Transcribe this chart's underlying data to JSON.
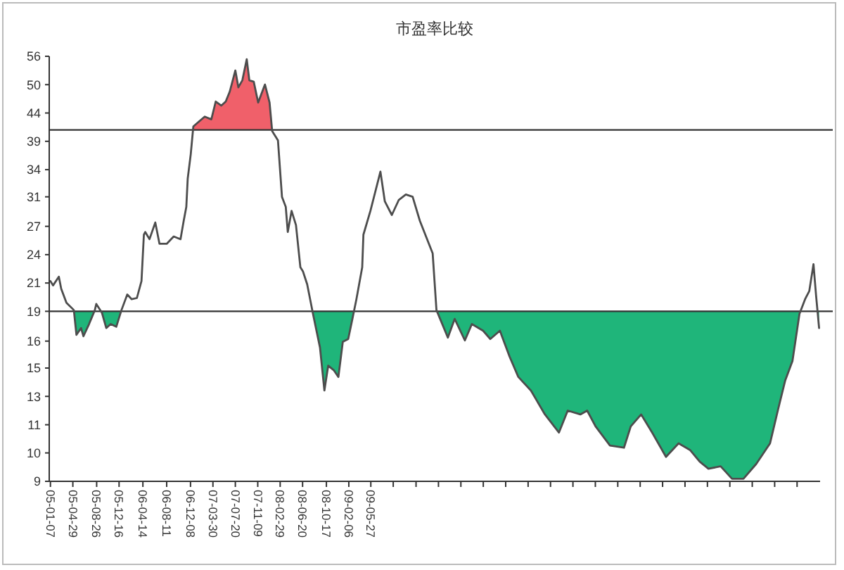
{
  "chart_data": {
    "type": "line",
    "title": "市盈率比较",
    "x": [
      "2005-01-07",
      "2005-01-20",
      "2005-02-18",
      "2005-03-02",
      "2005-03-28",
      "2005-05-04",
      "2005-05-17",
      "2005-06-09",
      "2005-06-21",
      "2005-07-19",
      "2005-08-17",
      "2005-08-24",
      "2005-09-21",
      "2005-10-13",
      "2005-11-04",
      "2005-12-02",
      "2005-12-28",
      "2006-01-26",
      "2006-02-17",
      "2006-03-15",
      "2006-04-07",
      "2006-04-19",
      "2006-04-26",
      "2006-05-17",
      "2006-06-15",
      "2006-07-06",
      "2006-08-11",
      "2006-09-15",
      "2006-10-19",
      "2006-11-04",
      "2006-11-17",
      "2006-11-24",
      "2006-12-09",
      "2006-12-22",
      "2007-01-13",
      "2007-02-17",
      "2007-03-22",
      "2007-04-13",
      "2007-05-11",
      "2007-06-02",
      "2007-06-22",
      "2007-07-20",
      "2007-08-04",
      "2007-08-24",
      "2007-09-15",
      "2007-09-28",
      "2007-10-20",
      "2007-11-11",
      "2007-12-15",
      "2008-01-07",
      "2008-01-20",
      "2008-02-18",
      "2008-03-09",
      "2008-03-28",
      "2008-04-07",
      "2008-04-26",
      "2008-05-18",
      "2008-06-09",
      "2008-06-22",
      "2008-07-13",
      "2008-08-11",
      "2008-09-15",
      "2008-10-07",
      "2008-10-26",
      "2008-11-24",
      "2008-12-16",
      "2009-01-07",
      "2009-02-03",
      "2009-02-24",
      "2009-03-16",
      "2009-04-14",
      "2009-04-20",
      "2009-05-25",
      "2009-07-14",
      "2009-08-05",
      "2009-09-09",
      "2009-10-14",
      "2009-11-18",
      "2009-12-22",
      "2010-01-27",
      "2010-04-01",
      "2010-04-20",
      "2010-06-16",
      "2010-07-20",
      "2010-09-09",
      "2010-10-14",
      "2010-12-09",
      "2011-01-14",
      "2011-03-03",
      "2011-04-20",
      "2011-06-03",
      "2011-08-05",
      "2011-10-14",
      "2011-12-23",
      "2012-02-05",
      "2012-04-08",
      "2012-05-12",
      "2012-06-23",
      "2012-09-03",
      "2012-11-12",
      "2012-12-16",
      "2013-02-06",
      "2013-04-02",
      "2013-06-10",
      "2013-08-12",
      "2013-10-08",
      "2013-11-25",
      "2014-01-08",
      "2014-03-10",
      "2014-05-06",
      "2014-07-02",
      "2014-09-04",
      "2014-11-12",
      "2014-12-23",
      "2015-01-27",
      "2015-03-04",
      "2015-04-08",
      "2015-05-06",
      "2015-05-27",
      "2015-06-17",
      "2015-06-30",
      "2015-07-15"
    ],
    "series": [
      {
        "color": "#4d4d4d",
        "values": [
          21.3,
          20.9,
          21.7,
          20.6,
          19.4,
          18.8,
          16.9,
          17.4,
          16.8,
          17.7,
          18.8,
          19.3,
          18.6,
          17.4,
          17.7,
          17.5,
          18.8,
          20.1,
          19.7,
          19.8,
          21.3,
          26.0,
          26.3,
          25.5,
          27.4,
          25.0,
          25.0,
          25.8,
          25.5,
          27.6,
          29.3,
          33.1,
          36.7,
          41.4,
          42.1,
          43.2,
          42.7,
          46.1,
          45.3,
          46.1,
          48.1,
          52.7,
          49.0,
          50.5,
          55.3,
          50.5,
          50.2,
          45.9,
          49.6,
          45.9,
          40.6,
          39.0,
          30.6,
          29.3,
          26.3,
          28.8,
          27.1,
          22.6,
          22.2,
          21.0,
          18.5,
          16.0,
          13.3,
          14.8,
          14.5,
          14.1,
          16.4,
          16.6,
          18.1,
          19.7,
          22.6,
          26.0,
          28.8,
          34.1,
          30.0,
          28.3,
          30.2,
          30.9,
          30.6,
          27.6,
          24.0,
          18.8,
          16.7,
          18.1,
          16.5,
          17.7,
          17.2,
          16.6,
          17.2,
          15.4,
          14.1,
          13.3,
          12.0,
          11.1,
          12.2,
          12.0,
          12.2,
          11.4,
          10.5,
          10.4,
          11.4,
          12.0,
          11.1,
          10.0,
          10.6,
          10.3,
          9.8,
          9.5,
          9.6,
          9.1,
          9.1,
          9.7,
          10.6,
          12.3,
          13.9,
          15.1,
          18.5,
          19.7,
          20.4,
          22.9,
          20.0,
          17.4
        ]
      }
    ],
    "log": true,
    "ylim": [
      9,
      56
    ],
    "yticks": [
      {
        "value": 9,
        "label": "9"
      },
      {
        "value": 10.17,
        "label": "10"
      },
      {
        "value": 11.48,
        "label": "11"
      },
      {
        "value": 12.97,
        "label": "13"
      },
      {
        "value": 14.65,
        "label": "15"
      },
      {
        "value": 16.45,
        "label": "16"
      },
      {
        "value": 18.7,
        "label": "19"
      },
      {
        "value": 21.12,
        "label": "21"
      },
      {
        "value": 23.86,
        "label": "24"
      },
      {
        "value": 26.95,
        "label": "27"
      },
      {
        "value": 30.6,
        "label": "31"
      },
      {
        "value": 34.39,
        "label": "34"
      },
      {
        "value": 38.85,
        "label": "39"
      },
      {
        "value": 43.88,
        "label": "44"
      },
      {
        "value": 49.57,
        "label": "50"
      },
      {
        "value": 56,
        "label": "56"
      }
    ],
    "xlim": [
      "2005-01-01",
      "2015-07-20"
    ],
    "xticks": [
      {
        "value": "2005-01-07",
        "label": "05-01-07"
      },
      {
        "value": "2005-04-29",
        "label": "05-04-29"
      },
      {
        "value": "2005-08-26",
        "label": "05-08-26"
      },
      {
        "value": "2005-12-16",
        "label": "05-12-16"
      },
      {
        "value": "2006-04-14",
        "label": "06-04-14"
      },
      {
        "value": "2006-08-11",
        "label": "06-08-11"
      },
      {
        "value": "2006-12-08",
        "label": "06-12-08"
      },
      {
        "value": "2007-03-30",
        "label": "07-03-30"
      },
      {
        "value": "2007-07-20",
        "label": "07-07-20"
      },
      {
        "value": "2007-11-09",
        "label": "07-11-09"
      },
      {
        "value": "2008-02-29",
        "label": "08-02-29"
      },
      {
        "value": "2008-06-20",
        "label": "08-06-20"
      },
      {
        "value": "2008-10-17",
        "label": "08-10-17"
      },
      {
        "value": "2009-02-06",
        "label": "09-02-06"
      },
      {
        "value": "2009-05-27",
        "label": "09-05-27"
      },
      {
        "value": "2009-09-16",
        "label": null
      },
      {
        "value": "2010-01-08",
        "label": null
      },
      {
        "value": "2010-04-30",
        "label": null
      },
      {
        "value": "2010-08-20",
        "label": null
      },
      {
        "value": "2010-12-10",
        "label": null
      },
      {
        "value": "2011-04-01",
        "label": null
      },
      {
        "value": "2011-07-22",
        "label": null
      },
      {
        "value": "2011-11-11",
        "label": null
      },
      {
        "value": "2012-03-02",
        "label": null
      },
      {
        "value": "2012-06-22",
        "label": null
      },
      {
        "value": "2012-10-12",
        "label": null
      },
      {
        "value": "2013-02-01",
        "label": null
      },
      {
        "value": "2013-05-24",
        "label": null
      },
      {
        "value": "2013-09-13",
        "label": null
      },
      {
        "value": "2014-01-03",
        "label": null
      },
      {
        "value": "2014-04-25",
        "label": null
      },
      {
        "value": "2014-08-15",
        "label": null
      },
      {
        "value": "2014-12-05",
        "label": null
      },
      {
        "value": "2015-03-27",
        "label": null
      }
    ],
    "ref_lines": [
      {
        "axis": "y",
        "value": 40.8,
        "color": "#333333"
      },
      {
        "axis": "y",
        "value": 18.7,
        "color": "#333333"
      }
    ],
    "bands": [
      {
        "axis": "y",
        "from": 40.8,
        "to": 56,
        "color": "#f0606a"
      },
      {
        "axis": "y",
        "from": 9,
        "to": 18.7,
        "color": "#1fb57a"
      }
    ],
    "grid": false,
    "line_style": "solid"
  }
}
